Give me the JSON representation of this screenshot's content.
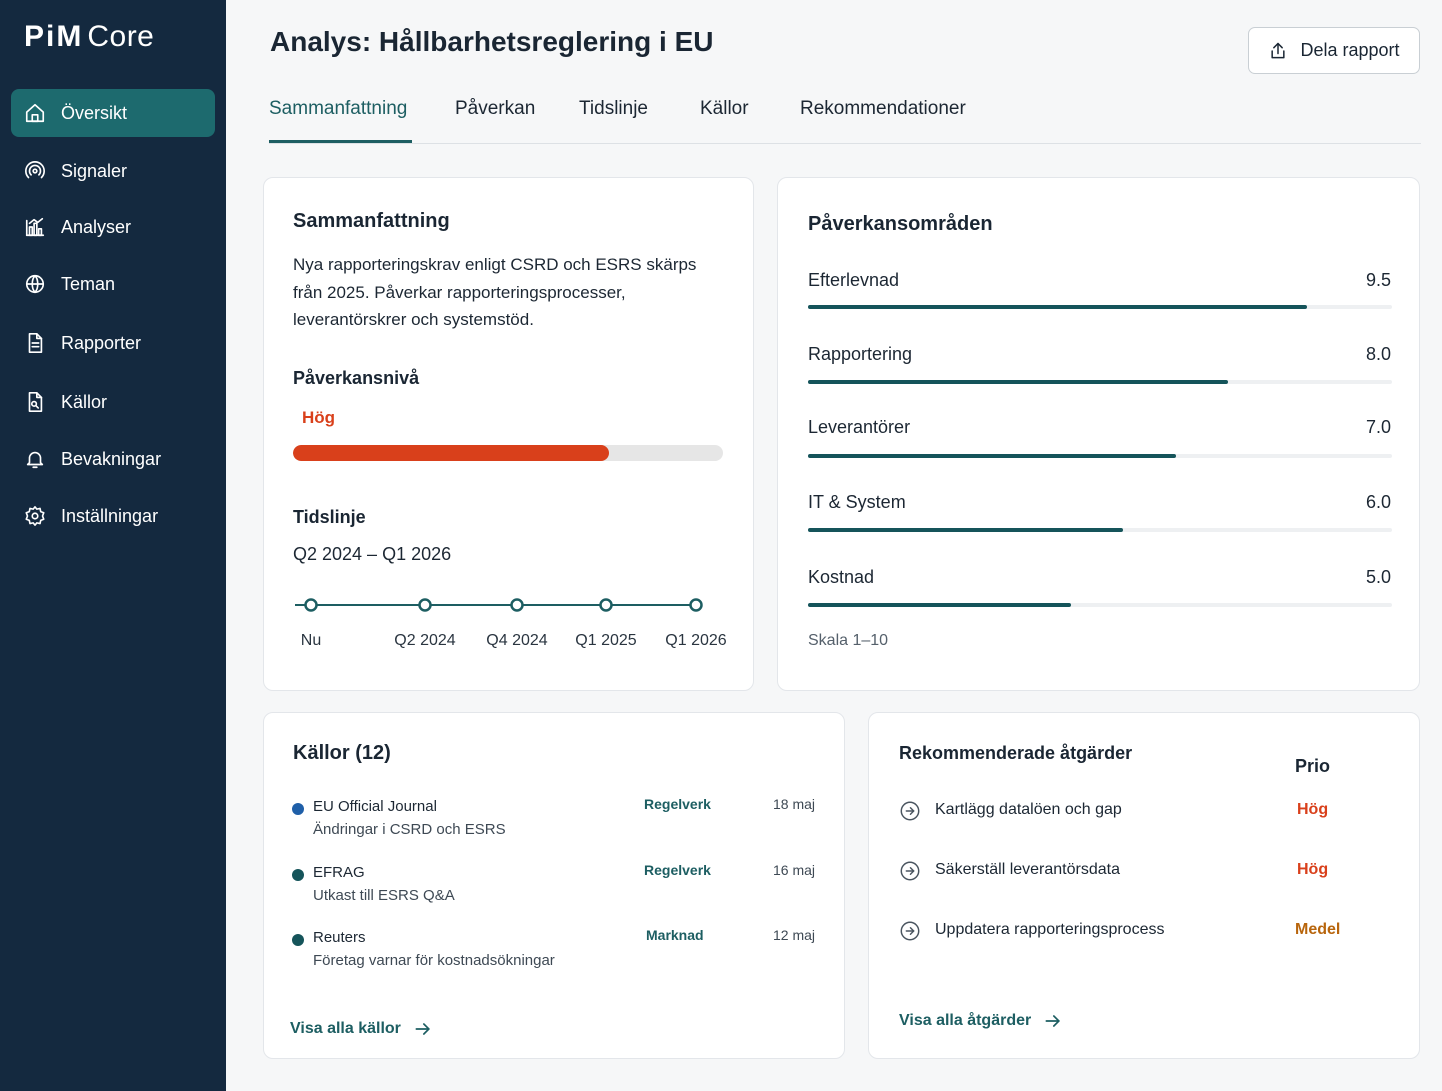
{
  "app": {
    "brand": "PiM",
    "product": "Core"
  },
  "sidebar": {
    "items": [
      {
        "label": "Översikt",
        "icon": "home-icon",
        "active": true
      },
      {
        "label": "Signaler",
        "icon": "signal-icon"
      },
      {
        "label": "Analyser",
        "icon": "chart-icon"
      },
      {
        "label": "Teman",
        "icon": "globe-icon"
      },
      {
        "label": "Rapporter",
        "icon": "document-icon"
      },
      {
        "label": "Källor",
        "icon": "file-icon"
      },
      {
        "label": "Bevakningar",
        "icon": "bell-icon"
      },
      {
        "label": "Inställningar",
        "icon": "gear-icon"
      }
    ]
  },
  "header": {
    "title": "Analys: Hållbarhetsreglering i EU",
    "share_label": "Dela rapport"
  },
  "tabs": [
    {
      "label": "Sammanfattning",
      "active": true
    },
    {
      "label": "Påverkan"
    },
    {
      "label": "Tidslinje"
    },
    {
      "label": "Källor"
    },
    {
      "label": "Rekommendationer"
    }
  ],
  "summary": {
    "title": "Sammanfattning",
    "text": "Nya rapporteringskrav enligt CSRD och ESRS skärps från 2025. Påverkar rapporteringsprocesser, leverantörskrer och systemstöd.",
    "impact_title": "Påverkansnivå",
    "impact_level": "Hög",
    "impact_fraction": 0.735,
    "impact_color": "#d9401b",
    "timeline_title": "Tidslinje",
    "timeline_range": "Q2 2024 – Q1 2026",
    "timeline_points": [
      "Nu",
      "Q2 2024",
      "Q4 2024",
      "Q1 2025",
      "Q1 2026"
    ]
  },
  "impact_areas": {
    "title": "Påverkansområden",
    "scale_note": "Skala 1–10",
    "items": [
      {
        "label": "Efterlevnad",
        "value": "9.5",
        "score": 9.5
      },
      {
        "label": "Rapportering",
        "value": "8.0",
        "score": 8.0
      },
      {
        "label": "Leverantörer",
        "value": "7.0",
        "score": 7.0
      },
      {
        "label": "IT & System",
        "value": "6.0",
        "score": 6.0
      },
      {
        "label": "Kostnad",
        "value": "5.0",
        "score": 5.0
      }
    ],
    "bar_color": "#15545a"
  },
  "sources": {
    "title": "Källor (12)",
    "items": [
      {
        "name": "EU Official Journal",
        "desc": "Ändringar i CSRD och ESRS",
        "category": "Regelverk",
        "date": "18 maj",
        "dot_color": "#1f5fa8"
      },
      {
        "name": "EFRAG",
        "desc": "Utkast till ESRS Q&A",
        "category": "Regelverk",
        "date": "16 maj",
        "dot_color": "#15545a"
      },
      {
        "name": "Reuters",
        "desc": "Företag varnar för kostnadsökningar",
        "category": "Marknad",
        "date": "12 maj",
        "dot_color": "#15545a"
      }
    ],
    "link_label": "Visa alla källor"
  },
  "actions": {
    "title": "Rekommenderade åtgärder",
    "prio_header": "Prio",
    "items": [
      {
        "label": "Kartlägg datalöen och gap",
        "prio": "Hög",
        "prio_color": "#d9401b"
      },
      {
        "label": "Säkerställ leverantörsdata",
        "prio": "Hög",
        "prio_color": "#d9401b"
      },
      {
        "label": "Uppdatera rapporteringsprocess",
        "prio": "Medel",
        "prio_color": "#b8650c"
      }
    ],
    "link_label": "Visa alla åtgärder"
  }
}
